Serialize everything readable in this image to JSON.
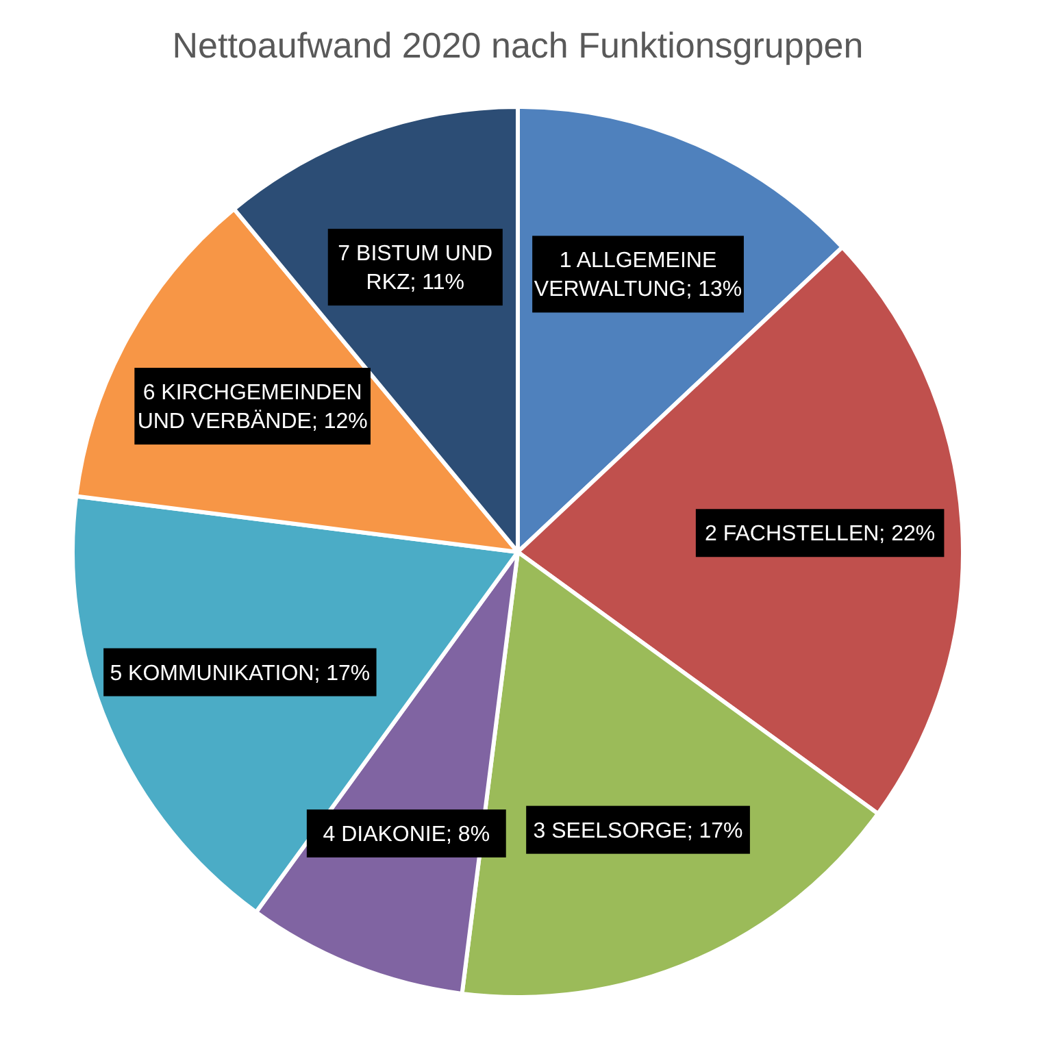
{
  "chart_data": {
    "type": "pie",
    "title": "Nettoaufwand 2020 nach Funktionsgruppen",
    "categories": [
      "1 ALLGEMEINE VERWALTUNG",
      "2 FACHSTELLEN",
      "3 SEELSORGE",
      "4 DIAKONIE",
      "5 KOMMUNIKATION",
      "6 KIRCHGEMEINDEN UND VERBÄNDE",
      "7 BISTUM UND RKZ"
    ],
    "values": [
      13,
      22,
      17,
      8,
      17,
      12,
      11
    ],
    "value_labels": [
      "13%",
      "22%",
      "17%",
      "8%",
      "17%",
      "12%",
      "11%"
    ],
    "colors": [
      "#4f81bd",
      "#c0504d",
      "#9bbb59",
      "#8064a2",
      "#4bacc6",
      "#f79646",
      "#2c4d75"
    ]
  }
}
